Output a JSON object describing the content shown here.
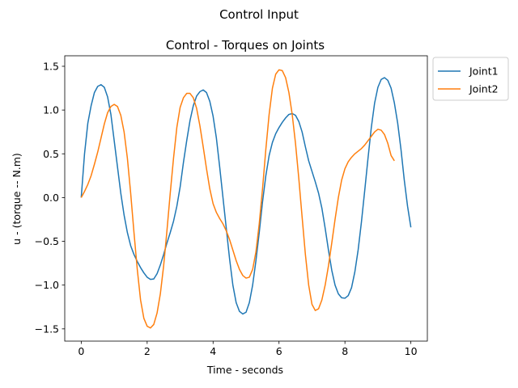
{
  "figure": {
    "suptitle": "Control Input"
  },
  "chart_data": {
    "type": "line",
    "title": "Control - Torques on Joints",
    "xlabel": "Time - seconds",
    "ylabel": "u - (torque -- N.m)",
    "xlim": [
      -0.5,
      10.5
    ],
    "ylim": [
      -1.64,
      1.62
    ],
    "xticks": [
      0,
      2,
      4,
      6,
      8,
      10
    ],
    "yticks": [
      -1.5,
      -1.0,
      -0.5,
      0.0,
      0.5,
      1.0,
      1.5
    ],
    "xtick_labels": [
      "0",
      "2",
      "4",
      "6",
      "8",
      "10"
    ],
    "ytick_labels": [
      "−1.5",
      "−1.0",
      "−0.5",
      "0.0",
      "0.5",
      "1.0",
      "1.5"
    ],
    "grid": false,
    "legend_position": "outside-top-right",
    "series": [
      {
        "name": "Joint1",
        "color": "#1f77b4",
        "points": [
          [
            0.0,
            0.0
          ],
          [
            0.1,
            0.5
          ],
          [
            0.2,
            0.85
          ],
          [
            0.3,
            1.05
          ],
          [
            0.4,
            1.2
          ],
          [
            0.5,
            1.27
          ],
          [
            0.6,
            1.29
          ],
          [
            0.7,
            1.26
          ],
          [
            0.8,
            1.15
          ],
          [
            0.9,
            0.95
          ],
          [
            1.0,
            0.65
          ],
          [
            1.1,
            0.35
          ],
          [
            1.2,
            0.05
          ],
          [
            1.3,
            -0.2
          ],
          [
            1.4,
            -0.4
          ],
          [
            1.5,
            -0.55
          ],
          [
            1.6,
            -0.65
          ],
          [
            1.7,
            -0.73
          ],
          [
            1.8,
            -0.8
          ],
          [
            1.9,
            -0.86
          ],
          [
            2.0,
            -0.91
          ],
          [
            2.1,
            -0.935
          ],
          [
            2.2,
            -0.93
          ],
          [
            2.3,
            -0.87
          ],
          [
            2.4,
            -0.77
          ],
          [
            2.5,
            -0.65
          ],
          [
            2.6,
            -0.52
          ],
          [
            2.7,
            -0.4
          ],
          [
            2.8,
            -0.27
          ],
          [
            2.9,
            -0.1
          ],
          [
            3.0,
            0.12
          ],
          [
            3.1,
            0.4
          ],
          [
            3.2,
            0.65
          ],
          [
            3.3,
            0.88
          ],
          [
            3.4,
            1.05
          ],
          [
            3.5,
            1.16
          ],
          [
            3.6,
            1.21
          ],
          [
            3.7,
            1.23
          ],
          [
            3.8,
            1.2
          ],
          [
            3.9,
            1.1
          ],
          [
            4.0,
            0.93
          ],
          [
            4.1,
            0.68
          ],
          [
            4.2,
            0.35
          ],
          [
            4.3,
            0.0
          ],
          [
            4.4,
            -0.35
          ],
          [
            4.5,
            -0.7
          ],
          [
            4.6,
            -1.0
          ],
          [
            4.7,
            -1.2
          ],
          [
            4.8,
            -1.3
          ],
          [
            4.9,
            -1.33
          ],
          [
            5.0,
            -1.31
          ],
          [
            5.1,
            -1.2
          ],
          [
            5.2,
            -1.0
          ],
          [
            5.3,
            -0.72
          ],
          [
            5.4,
            -0.4
          ],
          [
            5.5,
            -0.05
          ],
          [
            5.6,
            0.25
          ],
          [
            5.7,
            0.48
          ],
          [
            5.8,
            0.63
          ],
          [
            5.9,
            0.73
          ],
          [
            6.0,
            0.8
          ],
          [
            6.1,
            0.86
          ],
          [
            6.2,
            0.91
          ],
          [
            6.3,
            0.95
          ],
          [
            6.4,
            0.96
          ],
          [
            6.5,
            0.94
          ],
          [
            6.6,
            0.87
          ],
          [
            6.7,
            0.75
          ],
          [
            6.8,
            0.58
          ],
          [
            6.9,
            0.42
          ],
          [
            7.0,
            0.3
          ],
          [
            7.1,
            0.18
          ],
          [
            7.2,
            0.05
          ],
          [
            7.3,
            -0.12
          ],
          [
            7.4,
            -0.35
          ],
          [
            7.5,
            -0.6
          ],
          [
            7.6,
            -0.83
          ],
          [
            7.7,
            -1.0
          ],
          [
            7.8,
            -1.1
          ],
          [
            7.9,
            -1.145
          ],
          [
            8.0,
            -1.15
          ],
          [
            8.1,
            -1.12
          ],
          [
            8.2,
            -1.03
          ],
          [
            8.3,
            -0.85
          ],
          [
            8.4,
            -0.6
          ],
          [
            8.5,
            -0.28
          ],
          [
            8.6,
            0.08
          ],
          [
            8.7,
            0.45
          ],
          [
            8.8,
            0.8
          ],
          [
            8.9,
            1.08
          ],
          [
            9.0,
            1.26
          ],
          [
            9.1,
            1.35
          ],
          [
            9.2,
            1.37
          ],
          [
            9.3,
            1.34
          ],
          [
            9.4,
            1.25
          ],
          [
            9.5,
            1.08
          ],
          [
            9.6,
            0.85
          ],
          [
            9.7,
            0.55
          ],
          [
            9.8,
            0.2
          ],
          [
            9.9,
            -0.1
          ],
          [
            10.0,
            -0.34
          ]
        ]
      },
      {
        "name": "Joint2",
        "color": "#ff7f0e",
        "points": [
          [
            0.0,
            0.0
          ],
          [
            0.1,
            0.07
          ],
          [
            0.2,
            0.15
          ],
          [
            0.3,
            0.25
          ],
          [
            0.4,
            0.38
          ],
          [
            0.5,
            0.52
          ],
          [
            0.6,
            0.68
          ],
          [
            0.7,
            0.84
          ],
          [
            0.8,
            0.97
          ],
          [
            0.9,
            1.04
          ],
          [
            1.0,
            1.065
          ],
          [
            1.1,
            1.04
          ],
          [
            1.2,
            0.94
          ],
          [
            1.3,
            0.75
          ],
          [
            1.4,
            0.45
          ],
          [
            1.5,
            0.05
          ],
          [
            1.6,
            -0.4
          ],
          [
            1.7,
            -0.82
          ],
          [
            1.8,
            -1.17
          ],
          [
            1.9,
            -1.38
          ],
          [
            2.0,
            -1.47
          ],
          [
            2.1,
            -1.49
          ],
          [
            2.2,
            -1.45
          ],
          [
            2.3,
            -1.32
          ],
          [
            2.4,
            -1.1
          ],
          [
            2.5,
            -0.78
          ],
          [
            2.6,
            -0.38
          ],
          [
            2.7,
            0.05
          ],
          [
            2.8,
            0.45
          ],
          [
            2.9,
            0.8
          ],
          [
            3.0,
            1.03
          ],
          [
            3.1,
            1.14
          ],
          [
            3.2,
            1.19
          ],
          [
            3.3,
            1.19
          ],
          [
            3.4,
            1.14
          ],
          [
            3.5,
            1.02
          ],
          [
            3.6,
            0.82
          ],
          [
            3.7,
            0.58
          ],
          [
            3.8,
            0.33
          ],
          [
            3.9,
            0.1
          ],
          [
            4.0,
            -0.07
          ],
          [
            4.1,
            -0.17
          ],
          [
            4.2,
            -0.24
          ],
          [
            4.3,
            -0.3
          ],
          [
            4.4,
            -0.38
          ],
          [
            4.5,
            -0.48
          ],
          [
            4.6,
            -0.6
          ],
          [
            4.7,
            -0.72
          ],
          [
            4.8,
            -0.82
          ],
          [
            4.9,
            -0.89
          ],
          [
            5.0,
            -0.92
          ],
          [
            5.1,
            -0.91
          ],
          [
            5.2,
            -0.82
          ],
          [
            5.3,
            -0.62
          ],
          [
            5.4,
            -0.3
          ],
          [
            5.5,
            0.1
          ],
          [
            5.6,
            0.55
          ],
          [
            5.7,
            0.95
          ],
          [
            5.8,
            1.25
          ],
          [
            5.9,
            1.41
          ],
          [
            6.0,
            1.46
          ],
          [
            6.1,
            1.45
          ],
          [
            6.2,
            1.37
          ],
          [
            6.3,
            1.2
          ],
          [
            6.4,
            0.95
          ],
          [
            6.5,
            0.62
          ],
          [
            6.6,
            0.22
          ],
          [
            6.7,
            -0.22
          ],
          [
            6.8,
            -0.65
          ],
          [
            6.9,
            -1.0
          ],
          [
            7.0,
            -1.22
          ],
          [
            7.1,
            -1.29
          ],
          [
            7.2,
            -1.27
          ],
          [
            7.3,
            -1.17
          ],
          [
            7.4,
            -1.0
          ],
          [
            7.5,
            -0.78
          ],
          [
            7.6,
            -0.52
          ],
          [
            7.7,
            -0.25
          ],
          [
            7.8,
            0.0
          ],
          [
            7.9,
            0.2
          ],
          [
            8.0,
            0.33
          ],
          [
            8.1,
            0.41
          ],
          [
            8.2,
            0.46
          ],
          [
            8.3,
            0.5
          ],
          [
            8.4,
            0.53
          ],
          [
            8.5,
            0.56
          ],
          [
            8.6,
            0.6
          ],
          [
            8.7,
            0.65
          ],
          [
            8.8,
            0.7
          ],
          [
            8.9,
            0.75
          ],
          [
            9.0,
            0.78
          ],
          [
            9.1,
            0.77
          ],
          [
            9.2,
            0.72
          ],
          [
            9.3,
            0.62
          ],
          [
            9.4,
            0.48
          ],
          [
            9.5,
            0.42
          ]
        ]
      }
    ]
  }
}
